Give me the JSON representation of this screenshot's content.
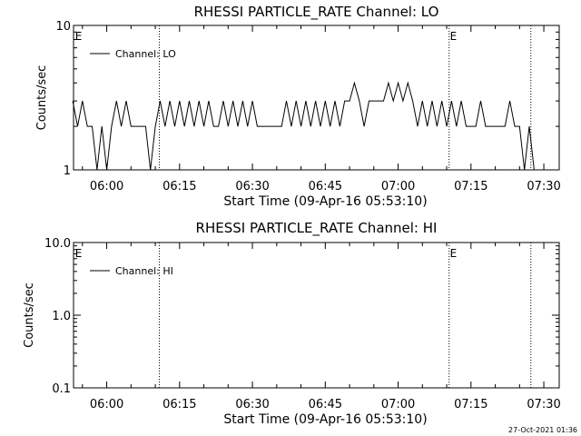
{
  "chart_data": [
    {
      "type": "line",
      "title": "RHESSI PARTICLE_RATE Channel: LO",
      "xlabel": "Start Time (09-Apr-16 05:53:10)",
      "ylabel": "Counts/sec",
      "yscale": "log",
      "ylim": [
        1,
        10
      ],
      "xlim": [
        "05:53:10",
        "07:33:10"
      ],
      "x_ticks": [
        "06:00",
        "06:15",
        "06:30",
        "06:45",
        "07:00",
        "07:15",
        "07:30"
      ],
      "y_ticks": [
        "1",
        "10"
      ],
      "legend": "top-left",
      "event_lines": [
        "06:10:50",
        "07:10:30",
        "07:27:20"
      ],
      "event_markers": [
        {
          "label": "E",
          "x": "05:53:30"
        },
        {
          "label": "E",
          "x": "07:10:40"
        }
      ],
      "series": [
        {
          "name": "Channel: LO",
          "x": [
            "05:53",
            "05:54",
            "05:55",
            "05:56",
            "05:57",
            "05:58",
            "05:59",
            "06:00",
            "06:01",
            "06:02",
            "06:03",
            "06:04",
            "06:05",
            "06:06",
            "06:07",
            "06:08",
            "06:09",
            "06:10",
            "06:11",
            "06:12",
            "06:13",
            "06:14",
            "06:15",
            "06:16",
            "06:17",
            "06:18",
            "06:19",
            "06:20",
            "06:21",
            "06:22",
            "06:23",
            "06:24",
            "06:25",
            "06:26",
            "06:27",
            "06:28",
            "06:29",
            "06:30",
            "06:31",
            "06:32",
            "06:33",
            "06:34",
            "06:35",
            "06:36",
            "06:37",
            "06:38",
            "06:39",
            "06:40",
            "06:41",
            "06:42",
            "06:43",
            "06:44",
            "06:45",
            "06:46",
            "06:47",
            "06:48",
            "06:49",
            "06:50",
            "06:51",
            "06:52",
            "06:53",
            "06:54",
            "06:55",
            "06:56",
            "06:57",
            "06:58",
            "06:59",
            "07:00",
            "07:01",
            "07:02",
            "07:03",
            "07:04",
            "07:05",
            "07:06",
            "07:07",
            "07:08",
            "07:09",
            "07:10",
            "07:11",
            "07:12",
            "07:13",
            "07:14",
            "07:15",
            "07:16",
            "07:17",
            "07:18",
            "07:19",
            "07:20",
            "07:21",
            "07:22",
            "07:23",
            "07:24",
            "07:25",
            "07:26",
            "07:27",
            "07:28"
          ],
          "values": [
            3,
            2,
            3,
            2,
            2,
            1,
            2,
            1,
            2,
            3,
            2,
            3,
            2,
            2,
            2,
            2,
            1,
            2,
            3,
            2,
            3,
            2,
            3,
            2,
            3,
            2,
            3,
            2,
            3,
            2,
            2,
            3,
            2,
            3,
            2,
            3,
            2,
            3,
            2,
            2,
            2,
            2,
            2,
            2,
            3,
            2,
            3,
            2,
            3,
            2,
            3,
            2,
            3,
            2,
            3,
            2,
            3,
            3,
            4,
            3,
            2,
            3,
            3,
            3,
            3,
            4,
            3,
            4,
            3,
            4,
            3,
            2,
            3,
            2,
            3,
            2,
            3,
            2,
            3,
            2,
            3,
            2,
            2,
            2,
            3,
            2,
            2,
            2,
            2,
            2,
            3,
            2,
            2,
            1,
            2,
            1
          ]
        }
      ]
    },
    {
      "type": "line",
      "title": "RHESSI PARTICLE_RATE Channel: HI",
      "xlabel": "Start Time (09-Apr-16 05:53:10)",
      "ylabel": "Counts/sec",
      "yscale": "log",
      "ylim": [
        0.1,
        10
      ],
      "xlim": [
        "05:53:10",
        "07:33:10"
      ],
      "x_ticks": [
        "06:00",
        "06:15",
        "06:30",
        "06:45",
        "07:00",
        "07:15",
        "07:30"
      ],
      "y_ticks": [
        "0.1",
        "1.0",
        "10.0"
      ],
      "legend": "top-left",
      "event_lines": [
        "06:10:50",
        "07:10:30",
        "07:27:20"
      ],
      "event_markers": [
        {
          "label": "E",
          "x": "05:53:30"
        },
        {
          "label": "E",
          "x": "07:10:40"
        }
      ],
      "series": [
        {
          "name": "Channel: HI",
          "x": [],
          "values": []
        }
      ]
    }
  ],
  "footer": {
    "timestamp": "27-Oct-2021 01:36"
  }
}
